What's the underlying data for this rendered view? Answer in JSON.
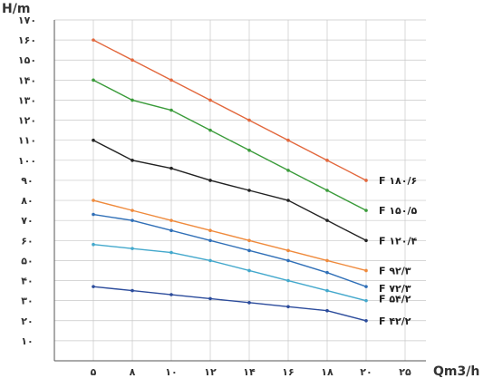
{
  "chart_data": {
    "type": "line",
    "ylabel": "H/m",
    "xlabel": "Qm3/h",
    "x": [
      5,
      8,
      10,
      12,
      14,
      16,
      18,
      20
    ],
    "x_ticks": [
      "۵",
      "۸",
      "۱۰",
      "۱۲",
      "۱۴",
      "۱۶",
      "۱۸",
      "۲۰",
      "۲۵"
    ],
    "y_ticks": [
      "۱۰",
      "۲۰",
      "۳۰",
      "۴۰",
      "۵۰",
      "۶۰",
      "۷۰",
      "۸۰",
      "۹۰",
      "۱۰۰",
      "۱۱۰",
      "۱۲۰",
      "۱۳۰",
      "۱۴۰",
      "۱۵۰",
      "۱۶۰",
      "۱۷۰"
    ],
    "ylim": [
      0,
      170
    ],
    "grid": true,
    "series": [
      {
        "name": "F ۱۸۰/۶",
        "color": "#e2673c",
        "values": [
          160,
          150,
          140,
          130,
          120,
          110,
          100,
          90
        ]
      },
      {
        "name": "F ۱۵۰/۵",
        "color": "#3a9b3a",
        "values": [
          140,
          130,
          125,
          115,
          105,
          95,
          85,
          75
        ]
      },
      {
        "name": "F ۱۲۰/۴",
        "color": "#222222",
        "values": [
          110,
          100,
          96,
          90,
          85,
          80,
          70,
          60
        ]
      },
      {
        "name": "F ۹۲/۳",
        "color": "#ef8a3c",
        "values": [
          80,
          75,
          70,
          65,
          60,
          55,
          50,
          45
        ]
      },
      {
        "name": "F ۷۲/۳",
        "color": "#2f6fb7",
        "values": [
          73,
          70,
          65,
          60,
          55,
          50,
          44,
          37
        ]
      },
      {
        "name": "F ۵۴/۲",
        "color": "#43a8cc",
        "values": [
          58,
          56,
          54,
          50,
          45,
          40,
          35,
          30
        ]
      },
      {
        "name": "F ۴۲/۲",
        "color": "#2c4c9c",
        "values": [
          37,
          35,
          33,
          31,
          29,
          27,
          25,
          20
        ]
      }
    ]
  }
}
